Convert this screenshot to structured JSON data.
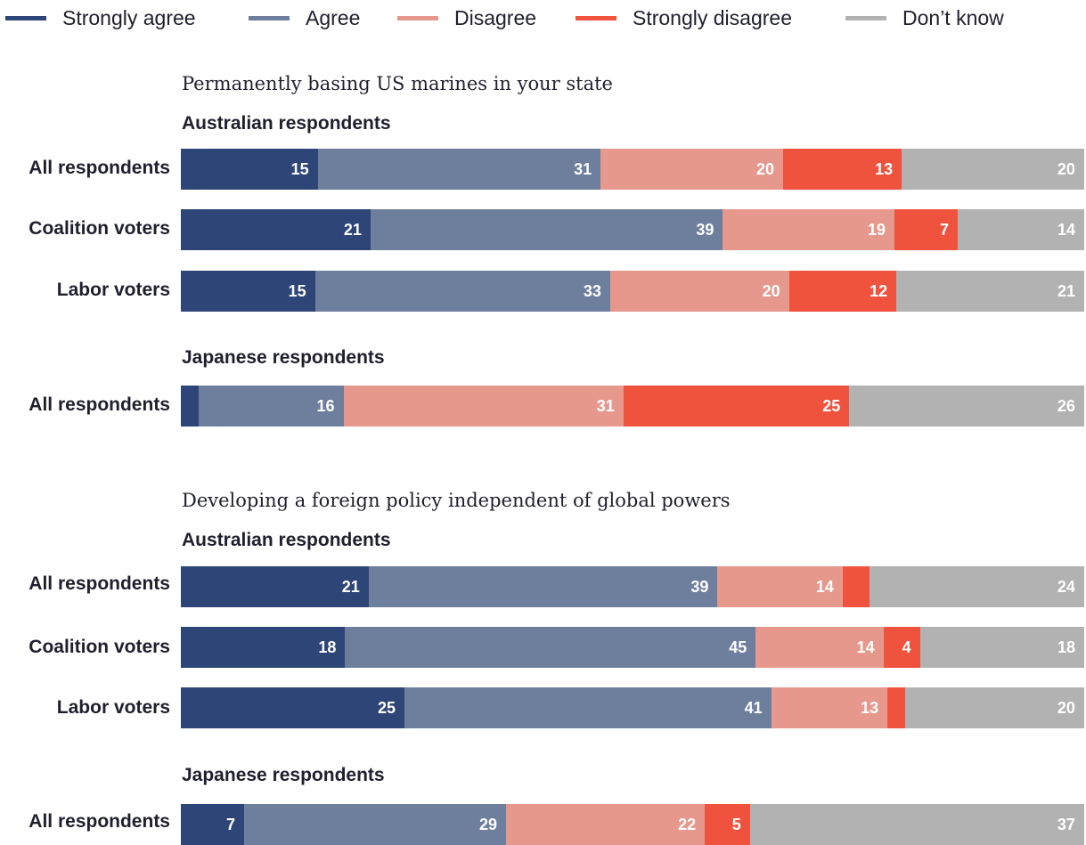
{
  "legend": [
    {
      "label": "Strongly agree",
      "color": "#2e4677"
    },
    {
      "label": "Agree",
      "color": "#6e7f9e"
    },
    {
      "label": "Disagree",
      "color": "#e6988c"
    },
    {
      "label": "Strongly disagree",
      "color": "#ef533d"
    },
    {
      "label": "Don’t know",
      "color": "#b2b2b2"
    }
  ],
  "chart_data": [
    {
      "type": "bar",
      "orientation": "horizontal",
      "stacked": true,
      "title": "Permanently basing US marines in your state",
      "legend_position": "top",
      "categories": [
        "Strongly agree",
        "Agree",
        "Disagree",
        "Strongly disagree",
        "Don’t know"
      ],
      "groups": [
        {
          "name": "Australian respondents",
          "rows": [
            {
              "label": "All respondents",
              "values": [
                15,
                31,
                20,
                13,
                20
              ],
              "data_labels": [
                "15",
                "31",
                "20",
                "13",
                "20"
              ]
            },
            {
              "label": "Coalition voters",
              "values": [
                21,
                39,
                19,
                7,
                14
              ],
              "data_labels": [
                "21",
                "39",
                "19",
                "7",
                "14"
              ]
            },
            {
              "label": "Labor voters",
              "values": [
                15,
                33,
                20,
                12,
                21
              ],
              "data_labels": [
                "15",
                "33",
                "20",
                "12",
                "21"
              ]
            }
          ]
        },
        {
          "name": "Japanese respondents",
          "rows": [
            {
              "label": "All respondents",
              "values": [
                2,
                16,
                31,
                25,
                26
              ],
              "data_labels": [
                "",
                "16",
                "31",
                "25",
                "26"
              ]
            }
          ]
        }
      ]
    },
    {
      "type": "bar",
      "orientation": "horizontal",
      "stacked": true,
      "title": "Developing a foreign policy independent of global powers",
      "legend_position": "top",
      "categories": [
        "Strongly agree",
        "Agree",
        "Disagree",
        "Strongly disagree",
        "Don’t know"
      ],
      "groups": [
        {
          "name": "Australian respondents",
          "rows": [
            {
              "label": "All respondents",
              "values": [
                21,
                39,
                14,
                3,
                24
              ],
              "data_labels": [
                "21",
                "39",
                "14",
                "",
                "24"
              ]
            },
            {
              "label": "Coalition voters",
              "values": [
                18,
                45,
                14,
                4,
                18
              ],
              "data_labels": [
                "18",
                "45",
                "14",
                "4",
                "18"
              ]
            },
            {
              "label": "Labor voters",
              "values": [
                25,
                41,
                13,
                2,
                20
              ],
              "data_labels": [
                "25",
                "41",
                "13",
                "",
                "20"
              ]
            }
          ]
        },
        {
          "name": "Japanese respondents",
          "rows": [
            {
              "label": "All respondents",
              "values": [
                7,
                29,
                22,
                5,
                37
              ],
              "data_labels": [
                "7",
                "29",
                "22",
                "5",
                "37"
              ]
            }
          ]
        }
      ]
    }
  ]
}
